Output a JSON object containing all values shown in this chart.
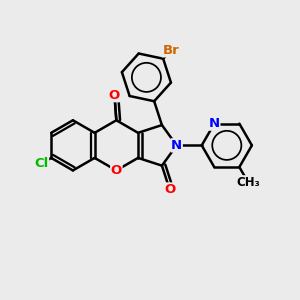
{
  "bg_color": "#ebebeb",
  "bond_color": "#000000",
  "bond_width": 1.8,
  "atom_colors": {
    "O": "#ff0000",
    "N": "#0000ff",
    "Cl": "#00bb00",
    "Br": "#cc6600",
    "C": "#000000"
  },
  "font_size": 9.5
}
